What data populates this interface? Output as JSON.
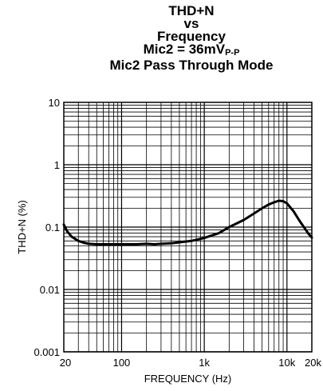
{
  "chart_data": {
    "type": "line",
    "title_lines": [
      {
        "text": "THD+N",
        "sub": ""
      },
      {
        "text": "vs",
        "sub": ""
      },
      {
        "text": "Frequency",
        "sub": ""
      },
      {
        "text": "Mic2 = 36mV",
        "sub": "P-P"
      },
      {
        "text": "Mic2 Pass Through Mode",
        "sub": ""
      }
    ],
    "xlabel": "FREQUENCY (Hz)",
    "ylabel": "THD+N (%)",
    "xscale": "log",
    "yscale": "log",
    "xlim": [
      20,
      20000
    ],
    "ylim": [
      0.001,
      10
    ],
    "grid": true,
    "x_tick_labels": [
      {
        "value": 20,
        "label": "20"
      },
      {
        "value": 100,
        "label": "100"
      },
      {
        "value": 1000,
        "label": "1k"
      },
      {
        "value": 10000,
        "label": "10k"
      },
      {
        "value": 20000,
        "label": "20k"
      }
    ],
    "y_tick_labels": [
      {
        "value": 10,
        "label": "10"
      },
      {
        "value": 1,
        "label": "1"
      },
      {
        "value": 0.1,
        "label": "0.1"
      },
      {
        "value": 0.01,
        "label": "0.01"
      },
      {
        "value": 0.001,
        "label": "0.001"
      }
    ],
    "series": [
      {
        "color": "#000000",
        "points": [
          [
            20,
            0.11
          ],
          [
            22,
            0.085
          ],
          [
            25,
            0.07
          ],
          [
            30,
            0.06
          ],
          [
            35,
            0.056
          ],
          [
            40,
            0.054
          ],
          [
            50,
            0.053
          ],
          [
            70,
            0.053
          ],
          [
            100,
            0.053
          ],
          [
            150,
            0.053
          ],
          [
            200,
            0.054
          ],
          [
            250,
            0.053
          ],
          [
            300,
            0.054
          ],
          [
            400,
            0.055
          ],
          [
            500,
            0.057
          ],
          [
            700,
            0.06
          ],
          [
            1000,
            0.067
          ],
          [
            1500,
            0.08
          ],
          [
            2000,
            0.1
          ],
          [
            3000,
            0.13
          ],
          [
            4000,
            0.165
          ],
          [
            5000,
            0.2
          ],
          [
            6000,
            0.23
          ],
          [
            7000,
            0.25
          ],
          [
            8000,
            0.265
          ],
          [
            9000,
            0.26
          ],
          [
            10000,
            0.24
          ],
          [
            12000,
            0.18
          ],
          [
            14000,
            0.13
          ],
          [
            16000,
            0.1
          ],
          [
            18000,
            0.08
          ],
          [
            20000,
            0.068
          ]
        ]
      }
    ]
  }
}
